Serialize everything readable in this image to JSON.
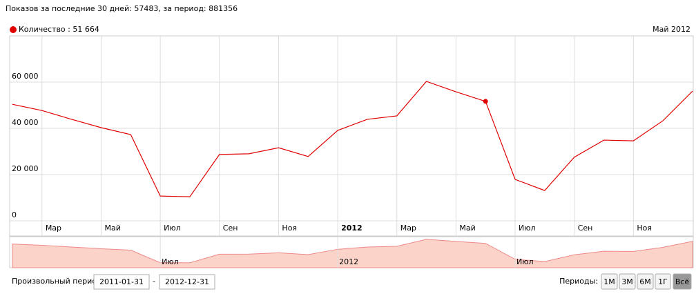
{
  "header": "Показов за последние 30 дней: 57483, за период: 881356",
  "chart_data": {
    "type": "line",
    "x": [
      "2011-01",
      "2011-02",
      "2011-03",
      "2011-04",
      "2011-05",
      "2011-06",
      "2011-07",
      "2011-08",
      "2011-09",
      "2011-10",
      "2011-11",
      "2011-12",
      "2012-01",
      "2012-02",
      "2012-03",
      "2012-04",
      "2012-05",
      "2012-06",
      "2012-07",
      "2012-08",
      "2012-09",
      "2012-10",
      "2012-11",
      "2012-12"
    ],
    "series": [
      {
        "name": "Количество",
        "color": "#e00000",
        "values": [
          50400,
          47700,
          43900,
          40300,
          37300,
          10700,
          10400,
          28700,
          29000,
          31600,
          27800,
          39100,
          43900,
          45400,
          60300,
          55800,
          51664,
          17900,
          13100,
          27500,
          34900,
          34600,
          43300,
          56100
        ]
      }
    ],
    "tooltip": {
      "x": "2012-05",
      "separator": " : ",
      "value_label": "51 664",
      "date": "Май 2012"
    },
    "ylim": [
      0,
      80000
    ],
    "yticks": [
      {
        "value": 0,
        "label": "0"
      },
      {
        "value": 20000,
        "label": "20 000"
      },
      {
        "value": 40000,
        "label": "40 000"
      },
      {
        "value": 60000,
        "label": "60 000"
      }
    ],
    "xticks": [
      {
        "value": "2011-03",
        "label": "Мар"
      },
      {
        "value": "2011-05",
        "label": "Май"
      },
      {
        "value": "2011-07",
        "label": "Июл"
      },
      {
        "value": "2011-09",
        "label": "Сен"
      },
      {
        "value": "2011-11",
        "label": "Ноя"
      },
      {
        "value": "2012-01",
        "label": "2012"
      },
      {
        "value": "2012-03",
        "label": "Мар"
      },
      {
        "value": "2012-05",
        "label": "Май"
      },
      {
        "value": "2012-07",
        "label": "Июл"
      },
      {
        "value": "2012-09",
        "label": "Сен"
      },
      {
        "value": "2012-11",
        "label": "Ноя"
      }
    ],
    "navigator_ticks": [
      {
        "value": "2011-07",
        "label": "Июл"
      },
      {
        "value": "2012-01",
        "label": "2012"
      },
      {
        "value": "2012-07",
        "label": "Июл"
      }
    ],
    "grid": true
  },
  "controls": {
    "period_label": "Произвольный период:",
    "from": "2011-01-31",
    "dash": "-",
    "to": "2012-12-31",
    "periods_label": "Периоды:",
    "buttons": [
      "1М",
      "3М",
      "6М",
      "1Г",
      "Всё"
    ],
    "active": "Всё"
  }
}
